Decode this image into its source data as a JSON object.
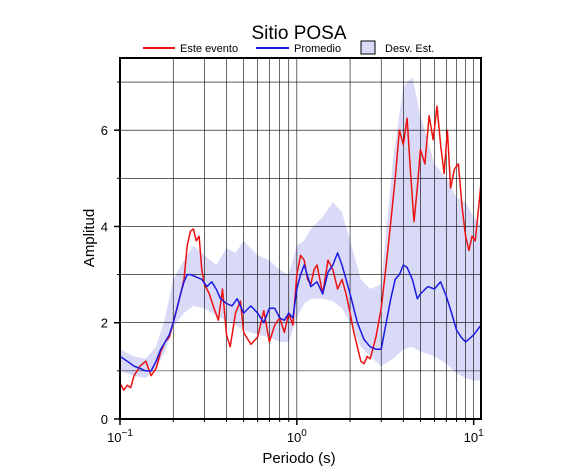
{
  "chart_data": {
    "type": "line",
    "title": "Sitio POSA",
    "xlabel": "Periodo (s)",
    "ylabel": "Amplitud",
    "xscale": "log",
    "xlim": [
      0.1,
      11
    ],
    "ylim": [
      0,
      7.5
    ],
    "xticks": [
      {
        "value": 0.1,
        "base": "10",
        "exp": "−1"
      },
      {
        "value": 1,
        "base": "10",
        "exp": "0"
      },
      {
        "value": 10,
        "base": "10",
        "exp": "1"
      }
    ],
    "yticks": [
      0,
      2,
      4,
      6
    ],
    "grid": true,
    "legend": {
      "position": "top",
      "entries": [
        {
          "label": "Este evento",
          "type": "line",
          "color": "#ee1111"
        },
        {
          "label": "Promedio",
          "type": "line",
          "color": "#1a1ae0"
        },
        {
          "label": "Desv. Est.",
          "type": "band",
          "color": "#d9d9f8"
        }
      ]
    },
    "band": {
      "name": "Desv. Est.",
      "color": "#d9d9f8",
      "x": [
        0.1,
        0.12,
        0.14,
        0.16,
        0.18,
        0.2,
        0.23,
        0.26,
        0.3,
        0.35,
        0.4,
        0.45,
        0.5,
        0.6,
        0.7,
        0.8,
        0.9,
        1.0,
        1.1,
        1.2,
        1.4,
        1.6,
        1.8,
        2.0,
        2.3,
        2.6,
        3.0,
        3.5,
        4.0,
        4.5,
        5.0,
        6.0,
        7.0,
        8.0,
        9.0,
        10.0,
        11.0
      ],
      "upper": [
        1.45,
        1.3,
        1.25,
        1.5,
        2.1,
        2.9,
        3.3,
        3.6,
        3.4,
        3.2,
        3.55,
        3.45,
        3.7,
        3.4,
        3.3,
        3.1,
        3.0,
        3.6,
        3.7,
        3.95,
        4.2,
        4.5,
        4.3,
        3.7,
        2.9,
        2.7,
        2.8,
        5.4,
        6.9,
        7.1,
        6.3,
        5.3,
        5.0,
        4.6,
        4.5,
        4.2,
        4.0
      ],
      "lower": [
        1.0,
        0.9,
        0.85,
        1.05,
        1.4,
        1.9,
        2.2,
        2.35,
        2.3,
        2.15,
        2.05,
        1.95,
        1.85,
        1.75,
        1.7,
        1.6,
        1.6,
        2.1,
        2.4,
        2.5,
        2.5,
        2.45,
        2.3,
        2.0,
        1.5,
        1.3,
        1.1,
        1.25,
        1.45,
        1.5,
        1.4,
        1.3,
        1.15,
        0.95,
        0.85,
        0.8,
        0.8
      ]
    },
    "series": [
      {
        "name": "Este evento",
        "color": "#ee1111",
        "x": [
          0.1,
          0.105,
          0.11,
          0.115,
          0.12,
          0.13,
          0.14,
          0.15,
          0.16,
          0.17,
          0.18,
          0.19,
          0.2,
          0.21,
          0.22,
          0.23,
          0.24,
          0.25,
          0.26,
          0.27,
          0.28,
          0.29,
          0.3,
          0.32,
          0.34,
          0.36,
          0.38,
          0.4,
          0.42,
          0.45,
          0.48,
          0.5,
          0.55,
          0.6,
          0.65,
          0.7,
          0.75,
          0.8,
          0.85,
          0.9,
          0.95,
          1.0,
          1.05,
          1.1,
          1.15,
          1.2,
          1.25,
          1.3,
          1.4,
          1.5,
          1.6,
          1.7,
          1.8,
          1.9,
          2.0,
          2.1,
          2.2,
          2.3,
          2.4,
          2.5,
          2.6,
          2.8,
          3.0,
          3.2,
          3.4,
          3.6,
          3.8,
          4.0,
          4.2,
          4.4,
          4.6,
          4.8,
          5.0,
          5.3,
          5.6,
          5.9,
          6.2,
          6.5,
          6.8,
          7.1,
          7.4,
          7.8,
          8.2,
          8.6,
          9.0,
          9.4,
          9.8,
          10.2,
          10.6,
          11.0
        ],
        "y": [
          0.75,
          0.6,
          0.7,
          0.65,
          0.9,
          1.1,
          1.2,
          0.9,
          1.05,
          1.4,
          1.6,
          1.7,
          2.0,
          2.3,
          2.6,
          2.9,
          3.6,
          3.9,
          3.95,
          3.7,
          3.8,
          3.1,
          2.8,
          2.6,
          2.3,
          2.05,
          2.7,
          1.75,
          1.5,
          2.2,
          2.45,
          1.8,
          1.55,
          1.7,
          2.25,
          1.6,
          1.95,
          2.1,
          1.8,
          2.2,
          1.95,
          3.0,
          3.4,
          3.3,
          2.9,
          2.8,
          3.1,
          3.2,
          2.6,
          3.3,
          3.1,
          2.7,
          2.9,
          2.6,
          2.2,
          1.8,
          1.5,
          1.2,
          1.15,
          1.3,
          1.25,
          1.7,
          2.3,
          3.2,
          4.1,
          5.0,
          6.0,
          5.7,
          6.25,
          5.1,
          4.1,
          4.8,
          5.6,
          5.3,
          6.3,
          5.8,
          6.5,
          5.7,
          5.1,
          6.0,
          4.8,
          5.2,
          5.3,
          4.4,
          3.8,
          3.5,
          3.8,
          3.7,
          4.3,
          4.9
        ]
      },
      {
        "name": "Promedio",
        "color": "#1a1ae0",
        "x": [
          0.1,
          0.11,
          0.12,
          0.13,
          0.14,
          0.15,
          0.16,
          0.17,
          0.18,
          0.19,
          0.2,
          0.21,
          0.22,
          0.23,
          0.24,
          0.25,
          0.27,
          0.29,
          0.31,
          0.33,
          0.35,
          0.37,
          0.4,
          0.43,
          0.46,
          0.5,
          0.55,
          0.6,
          0.65,
          0.7,
          0.75,
          0.8,
          0.85,
          0.9,
          0.95,
          1.0,
          1.05,
          1.1,
          1.2,
          1.3,
          1.4,
          1.5,
          1.6,
          1.7,
          1.8,
          1.9,
          2.0,
          2.2,
          2.4,
          2.6,
          2.8,
          3.0,
          3.2,
          3.4,
          3.6,
          3.8,
          4.0,
          4.2,
          4.5,
          4.8,
          5.0,
          5.5,
          6.0,
          6.5,
          7.0,
          7.5,
          8.0,
          8.5,
          9.0,
          10.0,
          11.0
        ],
        "y": [
          1.3,
          1.2,
          1.1,
          1.05,
          1.0,
          1.0,
          1.2,
          1.45,
          1.6,
          1.75,
          2.0,
          2.3,
          2.6,
          2.85,
          3.0,
          3.0,
          2.95,
          2.9,
          2.75,
          2.85,
          2.7,
          2.5,
          2.4,
          2.35,
          2.5,
          2.2,
          2.35,
          2.2,
          2.0,
          2.3,
          2.3,
          2.1,
          2.05,
          2.2,
          2.1,
          2.7,
          3.0,
          3.2,
          2.75,
          2.85,
          2.6,
          3.05,
          3.2,
          3.45,
          3.2,
          2.9,
          2.6,
          2.0,
          1.65,
          1.5,
          1.45,
          1.45,
          2.0,
          2.5,
          2.9,
          3.0,
          3.2,
          3.15,
          2.9,
          2.5,
          2.6,
          2.75,
          2.7,
          2.85,
          2.55,
          2.2,
          1.85,
          1.7,
          1.6,
          1.75,
          1.95
        ]
      }
    ]
  }
}
